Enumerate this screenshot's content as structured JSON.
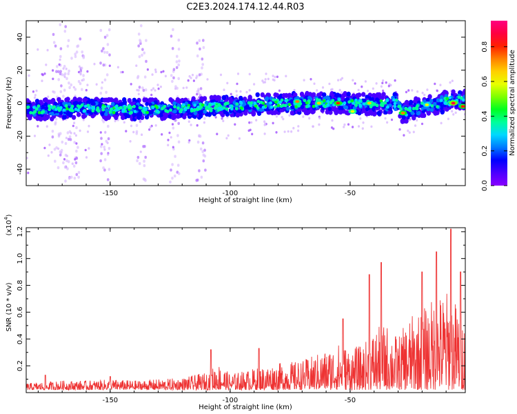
{
  "title": "C2E3.2024.174.12.44.R03",
  "colors": {
    "line": "#ee3333",
    "axis": "#000000",
    "rainbow": [
      "#8a00ff",
      "#4b00ff",
      "#0000ff",
      "#0078ff",
      "#00d8ff",
      "#00ff9a",
      "#00ff20",
      "#7cff00",
      "#e8ff00",
      "#ffd000",
      "#ff8000",
      "#ff2000",
      "#ff0040",
      "#ff0080"
    ]
  },
  "chart_data": [
    {
      "type": "heatmap",
      "title": "C2E3.2024.174.12.44.R03",
      "xlabel": "Height of straight line (km)",
      "ylabel": "Frequency (Hz)",
      "xlim": [
        -185,
        -2
      ],
      "ylim": [
        -50,
        50
      ],
      "x_ticks": [
        -150,
        -100,
        -50
      ],
      "x_tick_labels": [
        "-150",
        "-100",
        "-50"
      ],
      "y_ticks": [
        -40,
        -20,
        0,
        20,
        40
      ],
      "y_tick_labels": [
        "-40",
        "-20",
        "0",
        "20",
        "40"
      ],
      "colorbar": {
        "label": "Normalized spectral amplitude",
        "range": [
          0,
          0.95
        ],
        "ticks": [
          0.0,
          0.2,
          0.4,
          0.6,
          0.8
        ],
        "tick_labels": [
          "0.0",
          "0.2",
          "0.4",
          "0.6",
          "0.8"
        ]
      },
      "centerline": {
        "x": [
          -185,
          -160,
          -140,
          -120,
          -100,
          -80,
          -60,
          -50,
          -40,
          -30,
          -28,
          -20,
          -10,
          -2
        ],
        "y": [
          -4,
          -3,
          -4,
          -3,
          -2,
          0,
          0,
          0,
          -1,
          0,
          -6,
          -2,
          1,
          2
        ]
      },
      "peaks": [
        {
          "x": -72,
          "y": 1,
          "v": 0.72
        },
        {
          "x": -63,
          "y": 0,
          "v": 0.68
        },
        {
          "x": -55,
          "y": 0,
          "v": 0.78
        },
        {
          "x": -49,
          "y": -5,
          "v": 0.6
        },
        {
          "x": -42,
          "y": 0,
          "v": 0.65
        },
        {
          "x": -28,
          "y": -6,
          "v": 0.75
        },
        {
          "x": -18,
          "y": -1,
          "v": 0.55
        },
        {
          "x": -7,
          "y": 0,
          "v": 0.9
        },
        {
          "x": -3,
          "y": -2,
          "v": 0.8
        }
      ]
    },
    {
      "type": "line",
      "xlabel": "Height of straight line (km)",
      "ylabel": "SNR (10 * v/v)",
      "y_multiplier_label": "(x10",
      "y_multiplier_exponent": "4",
      "xlim": [
        -185,
        -2
      ],
      "ylim": [
        0,
        1.23
      ],
      "x_ticks": [
        -150,
        -100,
        -50
      ],
      "x_tick_labels": [
        "-150",
        "-100",
        "-50"
      ],
      "y_ticks": [
        0.2,
        0.4,
        0.6,
        0.8,
        1.0,
        1.2
      ],
      "y_tick_labels": [
        "0.2",
        "0.4",
        "0.6",
        "0.8",
        "1.0",
        "1.2"
      ],
      "envelope": {
        "x": [
          -185,
          -170,
          -160,
          -150,
          -140,
          -130,
          -120,
          -110,
          -105,
          -100,
          -90,
          -80,
          -70,
          -60,
          -55,
          -50,
          -45,
          -40,
          -35,
          -30,
          -25,
          -20,
          -15,
          -10,
          -5,
          -2
        ],
        "y": [
          0.05,
          0.07,
          0.07,
          0.08,
          0.07,
          0.08,
          0.09,
          0.13,
          0.2,
          0.12,
          0.16,
          0.2,
          0.22,
          0.3,
          0.35,
          0.32,
          0.33,
          0.45,
          0.5,
          0.4,
          0.55,
          0.6,
          0.7,
          0.75,
          0.65,
          0.5
        ]
      },
      "spikes": [
        {
          "x": -177,
          "y": 0.13
        },
        {
          "x": -150,
          "y": 0.12
        },
        {
          "x": -108,
          "y": 0.32
        },
        {
          "x": -88,
          "y": 0.33
        },
        {
          "x": -53,
          "y": 0.55
        },
        {
          "x": -42,
          "y": 0.88
        },
        {
          "x": -37,
          "y": 0.97
        },
        {
          "x": -20,
          "y": 0.9
        },
        {
          "x": -14,
          "y": 1.05
        },
        {
          "x": -8,
          "y": 1.22
        },
        {
          "x": -4,
          "y": 0.9
        }
      ]
    }
  ]
}
